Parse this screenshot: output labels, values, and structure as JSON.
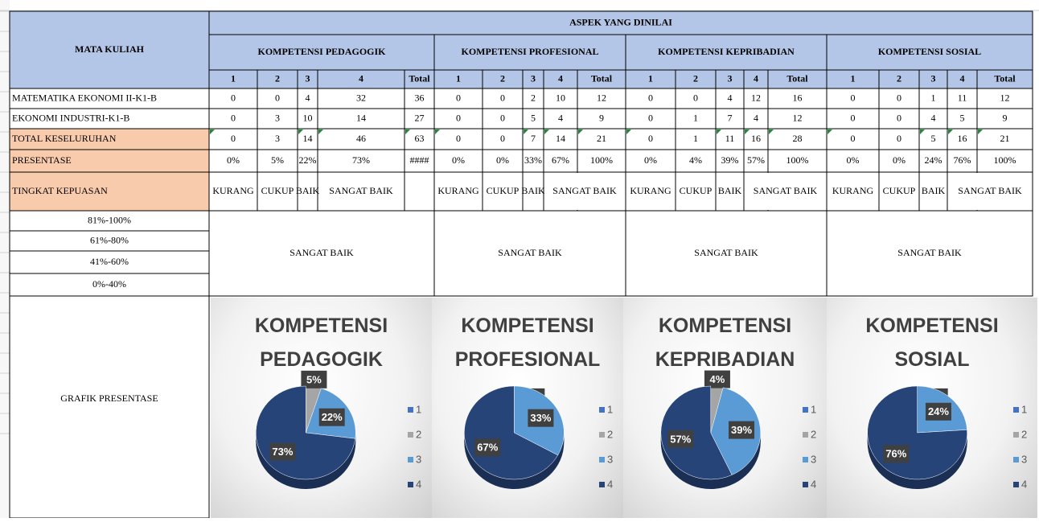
{
  "table": {
    "title": "ASPEK YANG DINILAI",
    "corner": "MATA KULIAH",
    "groups": [
      "KOMPETENSI PEDAGOGIK",
      "KOMPETENSI PROFESIONAL",
      "KOMPETENSI KEPRIBADIAN",
      "KOMPETENSI SOSIAL"
    ],
    "columns": [
      "1",
      "2",
      "3",
      "4",
      "Total"
    ],
    "rows": [
      {
        "label": "MATEMATIKA EKONOMI II-K1-B",
        "values": [
          0,
          0,
          4,
          32,
          36,
          0,
          0,
          2,
          10,
          12,
          0,
          0,
          4,
          12,
          16,
          0,
          0,
          1,
          11,
          12
        ]
      },
      {
        "label": "EKONOMI INDUSTRI-K1-B",
        "values": [
          0,
          3,
          10,
          14,
          27,
          0,
          0,
          5,
          4,
          9,
          0,
          1,
          7,
          4,
          12,
          0,
          0,
          4,
          5,
          9
        ]
      },
      {
        "label": "TOTAL KESELURUHAN",
        "values": [
          0,
          3,
          14,
          46,
          63,
          0,
          0,
          7,
          14,
          21,
          0,
          1,
          11,
          16,
          28,
          0,
          0,
          5,
          16,
          21
        ]
      }
    ],
    "percent": {
      "label": "PRESENTASE",
      "values": [
        "0%",
        "5%",
        "22%",
        "73%",
        "####",
        "0%",
        "0%",
        "33%",
        "67%",
        "100%",
        "0%",
        "4%",
        "39%",
        "57%",
        "100%",
        "0%",
        "0%",
        "24%",
        "76%",
        "100%"
      ]
    },
    "satisfaction": {
      "label": "TINGKAT KEPUASAN",
      "values": [
        [
          "KURANG",
          "CUKUP",
          "BAIK",
          "SANGAT BAIK"
        ],
        [
          "KURANG",
          "CUKUP",
          "BAIK",
          "SANGAT BAIK"
        ],
        [
          "KURANG",
          "CUKUP",
          "BAIK",
          "SANGAT BAIK"
        ],
        [
          "KURANG",
          "CUKUP",
          "BAIK",
          "SANGAT BAIK"
        ]
      ]
    },
    "scale": [
      "81%-100%",
      "61%-80%",
      "41%-60%",
      "0%-40%"
    ],
    "results": [
      "SANGAT BAIK",
      "SANGAT BAIK",
      "SANGAT BAIK",
      "SANGAT BAIK"
    ],
    "chart_label": "GRAFIK PRESENTASE"
  },
  "chart_data": [
    {
      "type": "pie",
      "title": "KOMPETENSI PEDAGOGIK",
      "categories": [
        "1",
        "2",
        "3",
        "4"
      ],
      "values": [
        0,
        5,
        22,
        73
      ],
      "value_labels": [
        "0%",
        "5%",
        "22%",
        "73%"
      ],
      "colors": [
        "#4472c4",
        "#a5a5a5",
        "#5b9bd5",
        "#264478"
      ]
    },
    {
      "type": "pie",
      "title": "KOMPETENSI PROFESIONAL",
      "categories": [
        "1",
        "2",
        "3",
        "4"
      ],
      "values": [
        0,
        0,
        33,
        67
      ],
      "value_labels": [
        "0%",
        "0%",
        "33%",
        "67%"
      ],
      "colors": [
        "#4472c4",
        "#a5a5a5",
        "#5b9bd5",
        "#264478"
      ]
    },
    {
      "type": "pie",
      "title": "KOMPETENSI KEPRIBADIAN",
      "categories": [
        "1",
        "2",
        "3",
        "4"
      ],
      "values": [
        0,
        4,
        39,
        57
      ],
      "value_labels": [
        "0%",
        "4%",
        "39%",
        "57%"
      ],
      "colors": [
        "#4472c4",
        "#a5a5a5",
        "#5b9bd5",
        "#264478"
      ]
    },
    {
      "type": "pie",
      "title": "KOMPETENSI SOSIAL",
      "categories": [
        "1",
        "2",
        "3",
        "4"
      ],
      "values": [
        0,
        0,
        24,
        76
      ],
      "value_labels": [
        "0%",
        "0%",
        "24%",
        "76%"
      ],
      "colors": [
        "#4472c4",
        "#a5a5a5",
        "#5b9bd5",
        "#264478"
      ]
    }
  ]
}
